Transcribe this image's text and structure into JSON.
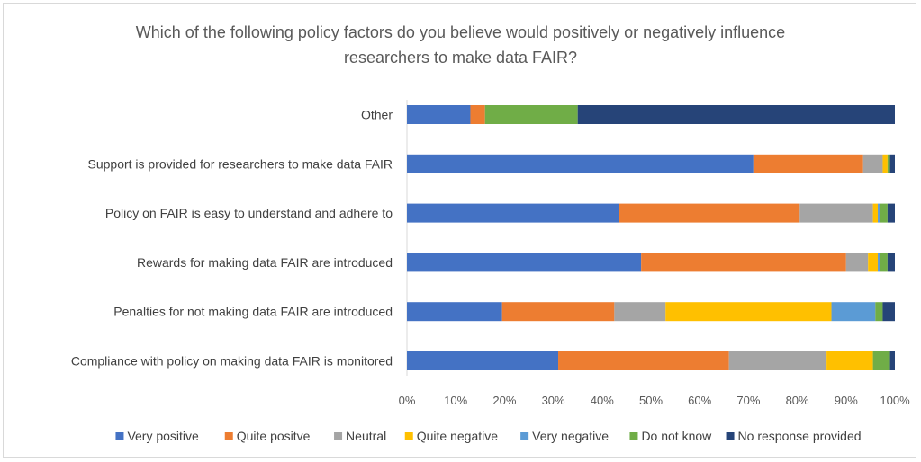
{
  "chart_data": {
    "type": "bar",
    "orientation": "horizontal",
    "stacked": "percent",
    "title_lines": [
      "Which of the following policy factors do you believe would positively or negatively influence",
      "researchers to make data FAIR?"
    ],
    "categories": [
      "Other",
      "Support is provided for researchers to make data FAIR",
      "Policy on FAIR is easy to understand and adhere to",
      "Rewards for making data FAIR are introduced",
      "Penalties for not making data FAIR are introduced",
      "Compliance with policy on making data FAIR is monitored"
    ],
    "series": [
      {
        "name": "Very positive",
        "color": "#4472C4",
        "values": [
          13,
          71,
          43.5,
          48,
          19.5,
          31
        ]
      },
      {
        "name": "Quite positve",
        "color": "#ED7D31",
        "values": [
          3,
          22.5,
          37,
          42,
          23,
          35
        ]
      },
      {
        "name": "Neutral",
        "color": "#A5A5A5",
        "values": [
          0,
          4,
          15,
          4.5,
          10.5,
          20
        ]
      },
      {
        "name": "Quite negative",
        "color": "#FFC000",
        "values": [
          0,
          1,
          1,
          2,
          34,
          9.5
        ]
      },
      {
        "name": "Very negative",
        "color": "#5B9BD5",
        "values": [
          0,
          0,
          0.5,
          0.5,
          9,
          0
        ]
      },
      {
        "name": "Do not know",
        "color": "#70AD47",
        "values": [
          19,
          0.5,
          1.5,
          1.5,
          1.5,
          3.5
        ]
      },
      {
        "name": "No response provided",
        "color": "#264478",
        "values": [
          65,
          1,
          1.5,
          1.5,
          2.5,
          1
        ]
      }
    ],
    "x_ticks": [
      "0%",
      "10%",
      "20%",
      "30%",
      "40%",
      "50%",
      "60%",
      "70%",
      "80%",
      "90%",
      "100%"
    ],
    "xlim": [
      0,
      100
    ],
    "grid": false,
    "legend_position": "bottom"
  }
}
